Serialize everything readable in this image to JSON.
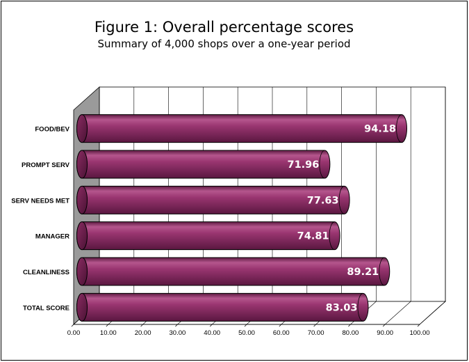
{
  "chart_data": {
    "type": "bar",
    "orientation": "horizontal",
    "style": "3d-cylinder",
    "title": "Figure 1: Overall percentage scores",
    "subtitle": "Summary of 4,000 shops over a one-year period",
    "categories": [
      "FOOD/BEV",
      "PROMPT SERV",
      "SERV NEEDS MET",
      "MANAGER",
      "CLEANLINESS",
      "TOTAL SCORE"
    ],
    "values": [
      94.18,
      71.96,
      77.63,
      74.81,
      89.21,
      83.03
    ],
    "value_labels": [
      "94.18",
      "71.96",
      "77.63",
      "74.81",
      "89.21",
      "83.03"
    ],
    "xlim": [
      0,
      100
    ],
    "xticks": [
      "0.00",
      "10.00",
      "20.00",
      "30.00",
      "40.00",
      "50.00",
      "60.00",
      "70.00",
      "80.00",
      "90.00",
      "100.00"
    ],
    "grid": true,
    "legend": "none",
    "bar_color": "#8f2d66"
  }
}
